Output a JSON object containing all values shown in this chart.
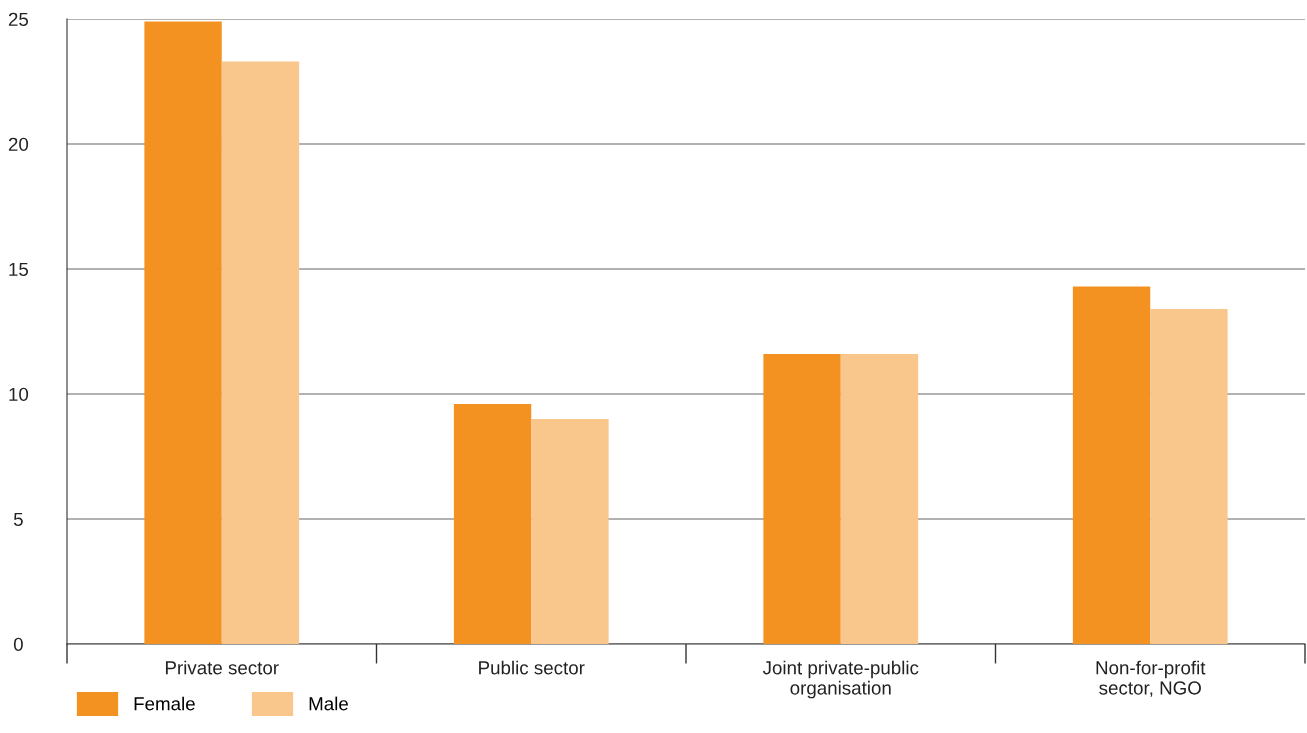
{
  "chart_data": {
    "type": "bar",
    "categories": [
      "Private sector",
      "Public sector",
      "Joint private-public\norganisation",
      "Non-for-profit\nsector, NGO"
    ],
    "series": [
      {
        "name": "Female",
        "color": "#f39220",
        "values": [
          24.9,
          9.6,
          11.6,
          14.3
        ]
      },
      {
        "name": "Male",
        "color": "#f9c68c",
        "values": [
          23.3,
          9.0,
          11.6,
          13.4
        ]
      }
    ],
    "ylim": [
      0,
      25
    ],
    "yticks": [
      0,
      5,
      10,
      15,
      20,
      25
    ],
    "grid": "y",
    "legend": "bottom left"
  }
}
